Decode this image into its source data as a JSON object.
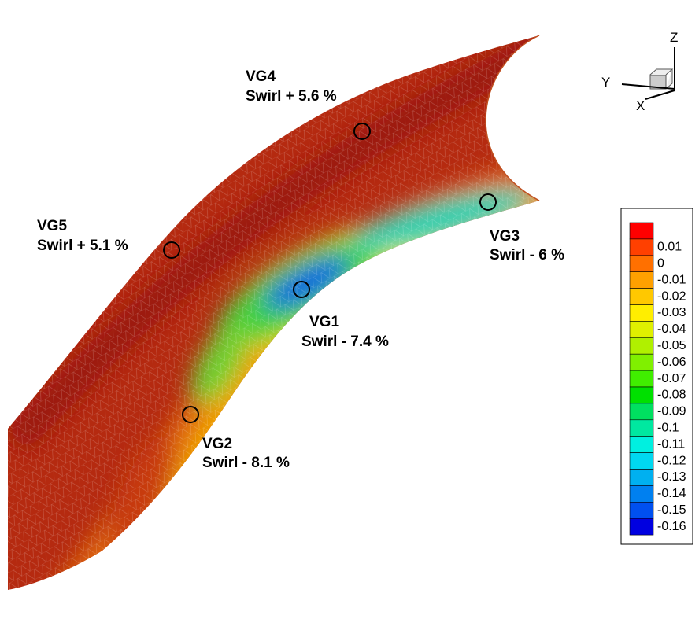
{
  "annotations": [
    {
      "name": "VG4",
      "text": "Swirl + 5.6 %"
    },
    {
      "name": "VG5",
      "text": "Swirl + 5.1 %"
    },
    {
      "name": "VG3",
      "text": "Swirl - 6 %"
    },
    {
      "name": "VG1",
      "text": "Swirl - 7.4 %"
    },
    {
      "name": "VG2",
      "text": "Swirl - 8.1 %"
    }
  ],
  "triad": {
    "z": "Z",
    "y": "Y",
    "x": "X"
  },
  "colorbar": {
    "labels": [
      0.01,
      0,
      -0.01,
      -0.02,
      -0.03,
      -0.04,
      -0.05,
      -0.06,
      -0.07,
      -0.08,
      -0.09,
      -0.1,
      -0.11,
      -0.12,
      -0.13,
      -0.14,
      -0.15,
      -0.16
    ],
    "colors": [
      "#ff0000",
      "#ff4000",
      "#ff7000",
      "#ffa000",
      "#ffc800",
      "#ffee00",
      "#e0f000",
      "#b0f000",
      "#80f000",
      "#40ee00",
      "#00e000",
      "#00e060",
      "#00e8a0",
      "#00f0e0",
      "#00d8f0",
      "#00b0f0",
      "#0080f0",
      "#0050f0",
      "#0000e0"
    ]
  }
}
